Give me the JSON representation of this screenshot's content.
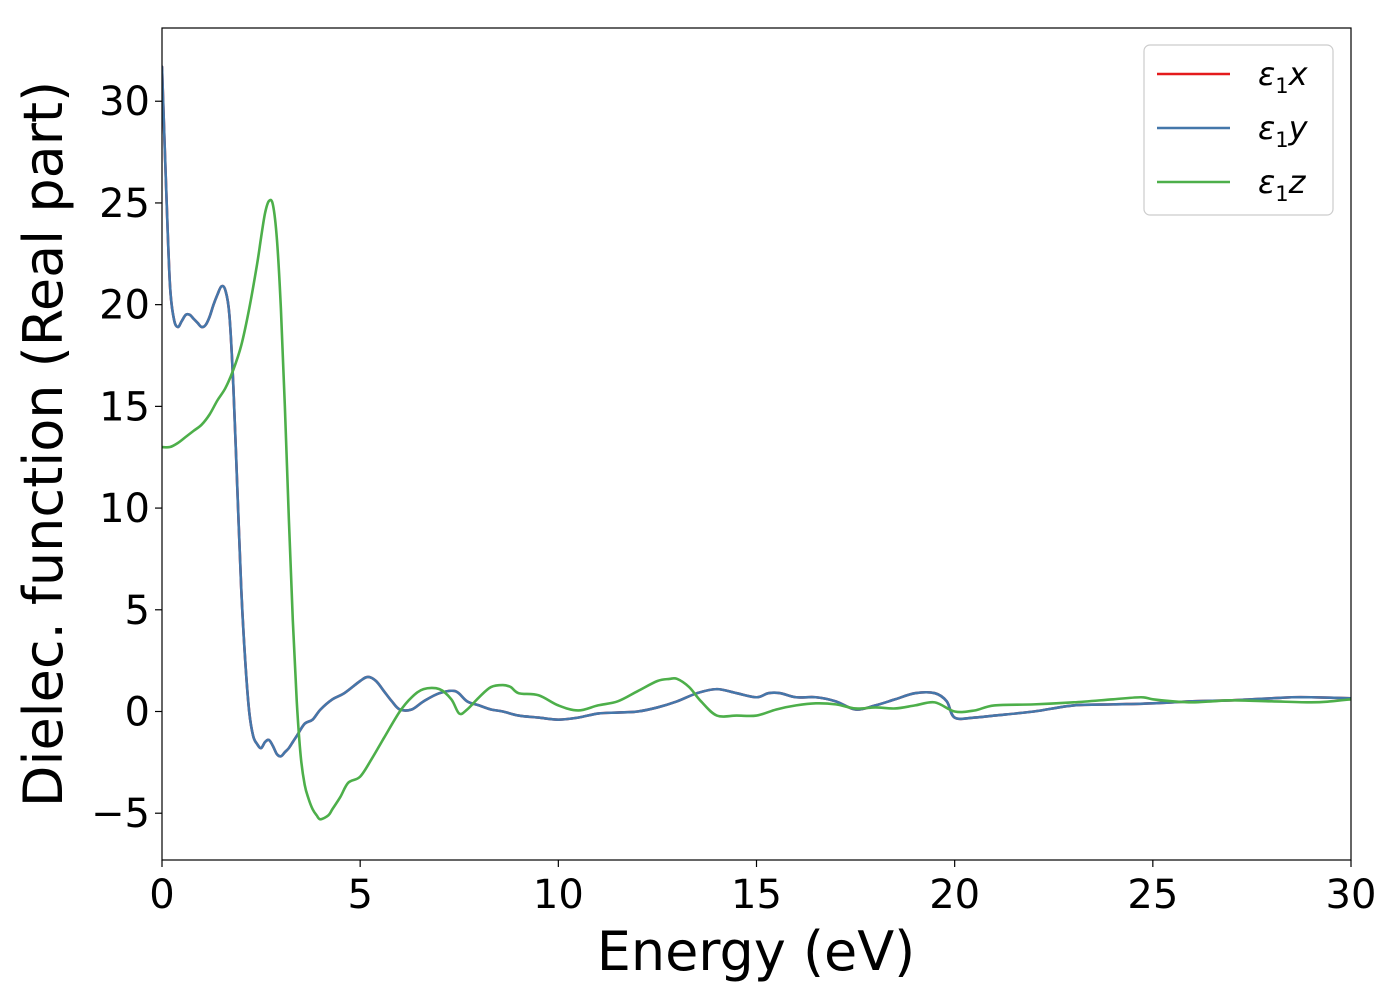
{
  "chart_data": {
    "type": "line",
    "xlabel": "Energy (eV)",
    "ylabel": "Dielec. function (Real part)",
    "xlim": [
      0,
      30
    ],
    "ylim": [
      -7.3,
      33.6
    ],
    "xticks": [
      0,
      5,
      10,
      15,
      20,
      25,
      30
    ],
    "xtick_labels": [
      "0",
      "5",
      "10",
      "15",
      "20",
      "25",
      "30"
    ],
    "yticks": [
      -5,
      0,
      5,
      10,
      15,
      20,
      25,
      30
    ],
    "ytick_labels": [
      "−5",
      "0",
      "5",
      "10",
      "15",
      "20",
      "25",
      "30"
    ],
    "grid": false,
    "legend_position": "top-right",
    "series": [
      {
        "name": "ε₁x",
        "legend": {
          "base": "ε",
          "sub": "1",
          "var": "x"
        },
        "color": "#e41a1c",
        "x": [
          0,
          0.1,
          0.2,
          0.3,
          0.4,
          0.5,
          0.6,
          0.7,
          0.8,
          0.9,
          1.0,
          1.1,
          1.2,
          1.3,
          1.4,
          1.5,
          1.6,
          1.7,
          1.8,
          1.9,
          2.0,
          2.1,
          2.2,
          2.3,
          2.4,
          2.5,
          2.6,
          2.7,
          2.8,
          2.9,
          3.0,
          3.1,
          3.2,
          3.3,
          3.4,
          3.6,
          3.8,
          4.0,
          4.3,
          4.6,
          5.0,
          5.2,
          5.4,
          5.6,
          5.8,
          6.0,
          6.3,
          6.6,
          7.0,
          7.4,
          7.7,
          8.0,
          8.3,
          8.6,
          9.0,
          9.5,
          10.0,
          10.5,
          11.0,
          11.5,
          12.0,
          12.5,
          13.0,
          13.5,
          14.0,
          14.5,
          15.0,
          15.3,
          15.6,
          16.0,
          16.5,
          17.0,
          17.5,
          18.0,
          18.5,
          19.0,
          19.5,
          19.8,
          20.0,
          20.5,
          21.0,
          22.0,
          23.0,
          24.0,
          25.0,
          26.0,
          27.0,
          28.0,
          28.5,
          29.0,
          30.0
        ],
        "y": [
          31.7,
          26.0,
          21.0,
          19.3,
          18.9,
          19.2,
          19.5,
          19.5,
          19.3,
          19.1,
          18.9,
          19.0,
          19.4,
          20.0,
          20.5,
          20.9,
          20.7,
          19.5,
          16.0,
          11.0,
          6.0,
          2.5,
          0.0,
          -1.2,
          -1.6,
          -1.8,
          -1.5,
          -1.4,
          -1.7,
          -2.1,
          -2.2,
          -2.0,
          -1.8,
          -1.5,
          -1.2,
          -0.6,
          -0.4,
          0.1,
          0.6,
          0.9,
          1.5,
          1.7,
          1.5,
          1.0,
          0.5,
          0.1,
          0.1,
          0.5,
          0.9,
          1.0,
          0.5,
          0.3,
          0.1,
          0.0,
          -0.2,
          -0.3,
          -0.4,
          -0.3,
          -0.1,
          -0.05,
          0.0,
          0.2,
          0.5,
          0.9,
          1.1,
          0.9,
          0.7,
          0.9,
          0.9,
          0.7,
          0.7,
          0.5,
          0.1,
          0.3,
          0.6,
          0.9,
          0.9,
          0.5,
          -0.3,
          -0.3,
          -0.2,
          0.0,
          0.3,
          0.35,
          0.4,
          0.5,
          0.55,
          0.65,
          0.7,
          0.7,
          0.65
        ]
      },
      {
        "name": "ε₁y",
        "legend": {
          "base": "ε",
          "sub": "1",
          "var": "y"
        },
        "color": "#4477aa",
        "x": [
          0,
          0.1,
          0.2,
          0.3,
          0.4,
          0.5,
          0.6,
          0.7,
          0.8,
          0.9,
          1.0,
          1.1,
          1.2,
          1.3,
          1.4,
          1.5,
          1.6,
          1.7,
          1.8,
          1.9,
          2.0,
          2.1,
          2.2,
          2.3,
          2.4,
          2.5,
          2.6,
          2.7,
          2.8,
          2.9,
          3.0,
          3.1,
          3.2,
          3.3,
          3.4,
          3.6,
          3.8,
          4.0,
          4.3,
          4.6,
          5.0,
          5.2,
          5.4,
          5.6,
          5.8,
          6.0,
          6.3,
          6.6,
          7.0,
          7.4,
          7.7,
          8.0,
          8.3,
          8.6,
          9.0,
          9.5,
          10.0,
          10.5,
          11.0,
          11.5,
          12.0,
          12.5,
          13.0,
          13.5,
          14.0,
          14.5,
          15.0,
          15.3,
          15.6,
          16.0,
          16.5,
          17.0,
          17.5,
          18.0,
          18.5,
          19.0,
          19.5,
          19.8,
          20.0,
          20.5,
          21.0,
          22.0,
          23.0,
          24.0,
          25.0,
          26.0,
          27.0,
          28.0,
          28.5,
          29.0,
          30.0
        ],
        "y": [
          31.7,
          26.0,
          21.0,
          19.3,
          18.9,
          19.2,
          19.5,
          19.5,
          19.3,
          19.1,
          18.9,
          19.0,
          19.4,
          20.0,
          20.5,
          20.9,
          20.7,
          19.5,
          16.0,
          11.0,
          6.0,
          2.5,
          0.0,
          -1.2,
          -1.6,
          -1.8,
          -1.5,
          -1.4,
          -1.7,
          -2.1,
          -2.2,
          -2.0,
          -1.8,
          -1.5,
          -1.2,
          -0.6,
          -0.4,
          0.1,
          0.6,
          0.9,
          1.5,
          1.7,
          1.5,
          1.0,
          0.5,
          0.1,
          0.1,
          0.5,
          0.9,
          1.0,
          0.5,
          0.3,
          0.1,
          0.0,
          -0.2,
          -0.3,
          -0.4,
          -0.3,
          -0.1,
          -0.05,
          0.0,
          0.2,
          0.5,
          0.9,
          1.1,
          0.9,
          0.7,
          0.9,
          0.9,
          0.7,
          0.7,
          0.5,
          0.1,
          0.3,
          0.6,
          0.9,
          0.9,
          0.5,
          -0.3,
          -0.3,
          -0.2,
          0.0,
          0.3,
          0.35,
          0.4,
          0.5,
          0.55,
          0.65,
          0.7,
          0.7,
          0.65
        ]
      },
      {
        "name": "ε₁z",
        "legend": {
          "base": "ε",
          "sub": "1",
          "var": "z"
        },
        "color": "#4daf4a",
        "x": [
          0,
          0.2,
          0.4,
          0.6,
          0.8,
          1.0,
          1.2,
          1.4,
          1.6,
          1.8,
          2.0,
          2.2,
          2.4,
          2.5,
          2.6,
          2.7,
          2.8,
          2.9,
          3.0,
          3.1,
          3.2,
          3.3,
          3.4,
          3.5,
          3.6,
          3.7,
          3.8,
          3.9,
          4.0,
          4.2,
          4.3,
          4.5,
          4.7,
          5.0,
          5.3,
          5.6,
          6.0,
          6.3,
          6.6,
          7.0,
          7.3,
          7.5,
          7.7,
          8.0,
          8.3,
          8.6,
          8.8,
          9.0,
          9.5,
          10.0,
          10.5,
          11.0,
          11.5,
          12.0,
          12.5,
          12.8,
          13.0,
          13.3,
          13.6,
          14.0,
          14.5,
          15.0,
          15.5,
          16.0,
          16.5,
          17.0,
          17.5,
          18.0,
          18.5,
          19.0,
          19.5,
          20.0,
          20.5,
          21.0,
          22.0,
          23.0,
          24.0,
          24.7,
          25.0,
          25.5,
          26.0,
          26.5,
          27.0,
          28.0,
          29.0,
          29.5,
          30.0
        ],
        "y": [
          13.0,
          13.0,
          13.2,
          13.5,
          13.8,
          14.1,
          14.6,
          15.3,
          15.9,
          16.8,
          18.0,
          19.8,
          22.0,
          23.3,
          24.5,
          25.1,
          24.9,
          23.2,
          19.8,
          15.0,
          9.5,
          4.5,
          0.5,
          -2.2,
          -3.6,
          -4.3,
          -4.8,
          -5.1,
          -5.3,
          -5.1,
          -4.8,
          -4.2,
          -3.5,
          -3.2,
          -2.3,
          -1.3,
          0.0,
          0.7,
          1.1,
          1.1,
          0.6,
          -0.1,
          0.1,
          0.7,
          1.2,
          1.3,
          1.2,
          0.9,
          0.8,
          0.3,
          0.05,
          0.3,
          0.5,
          1.0,
          1.5,
          1.6,
          1.6,
          1.2,
          0.5,
          -0.2,
          -0.2,
          -0.2,
          0.1,
          0.3,
          0.4,
          0.35,
          0.15,
          0.2,
          0.15,
          0.3,
          0.45,
          0.0,
          0.05,
          0.3,
          0.35,
          0.45,
          0.6,
          0.7,
          0.6,
          0.5,
          0.45,
          0.5,
          0.55,
          0.5,
          0.45,
          0.5,
          0.6
        ]
      }
    ]
  }
}
